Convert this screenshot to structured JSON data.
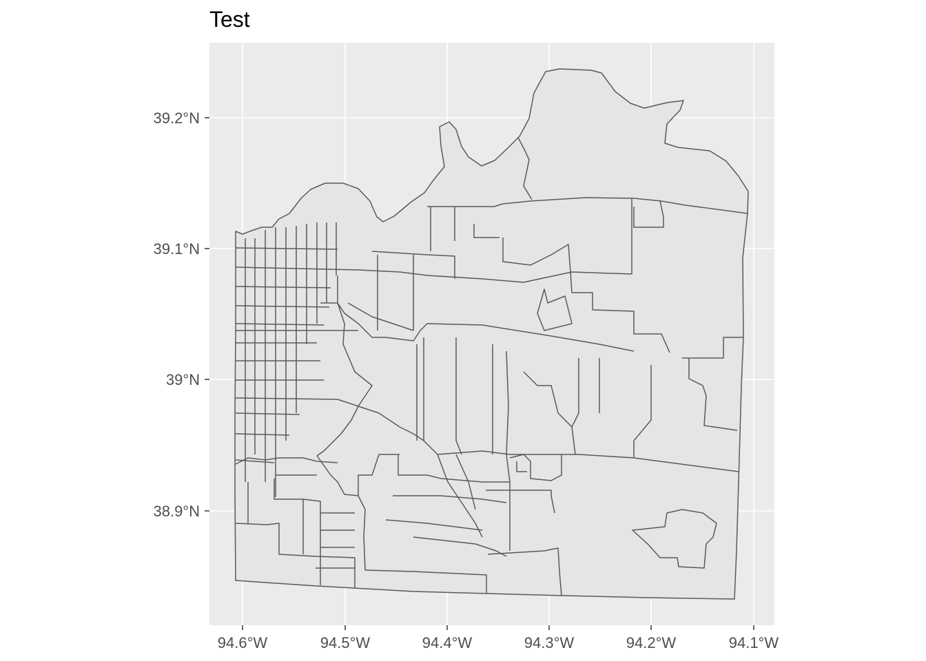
{
  "title": "Test",
  "colors": {
    "panel_bg": "#ebebeb",
    "grid": "#ffffff",
    "fill": "#e5e5e5",
    "border": "#595959",
    "tick_text": "#4d4d4d"
  },
  "chart_data": {
    "type": "map",
    "title": "Test",
    "xlabel": "",
    "ylabel": "",
    "x_ticks": [
      "94.6°W",
      "94.5°W",
      "94.4°W",
      "94.3°W",
      "94.2°W",
      "94.1°W"
    ],
    "y_ticks": [
      "39.2°N",
      "39.1°N",
      "39°N",
      "38.9°N"
    ],
    "x_range_lon": [
      -94.634,
      -94.081
    ],
    "y_range_lat": [
      38.819,
      39.257
    ],
    "grid": true,
    "legend": "none"
  }
}
